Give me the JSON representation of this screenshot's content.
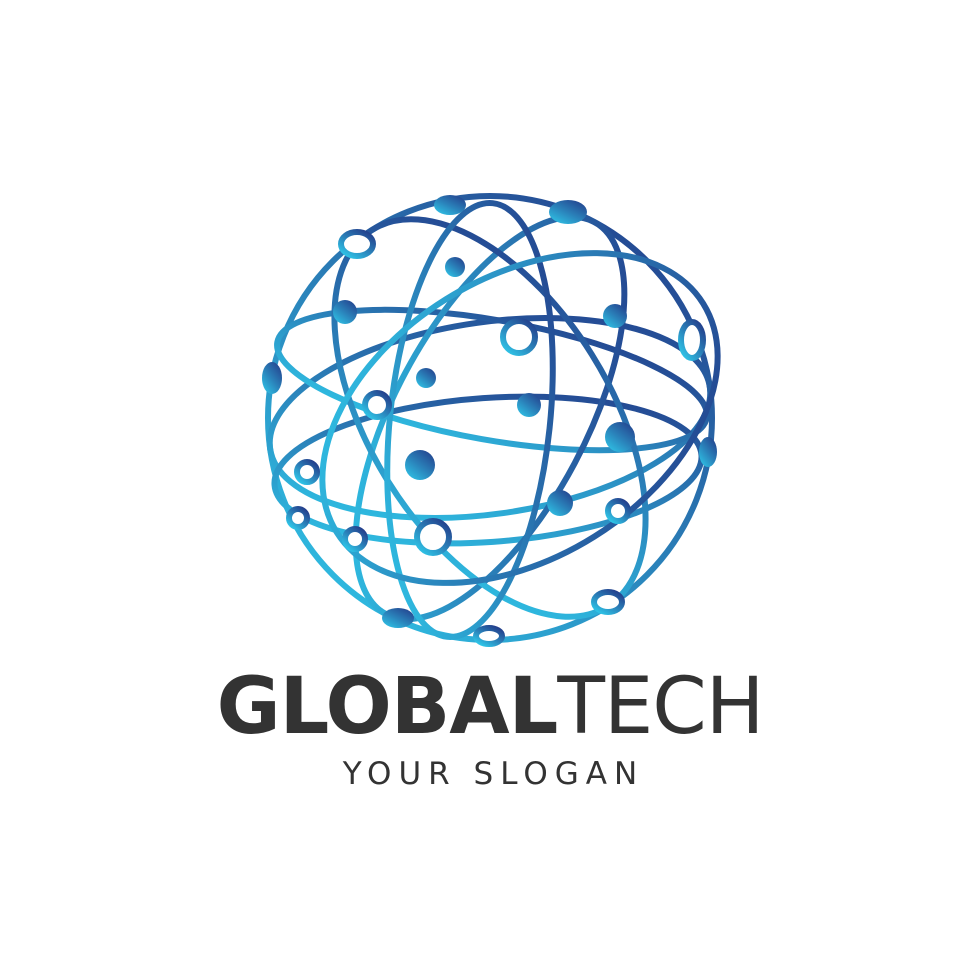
{
  "brand": {
    "name_part1": "GLOBAL",
    "name_part2": "TECH",
    "slogan": "YOUR SLOGAN"
  },
  "colors": {
    "text": "#333333",
    "globe_gradient_start": "#2fc6e8",
    "globe_gradient_end": "#233e8b",
    "background": "#ffffff"
  },
  "icon": "network-globe-icon"
}
